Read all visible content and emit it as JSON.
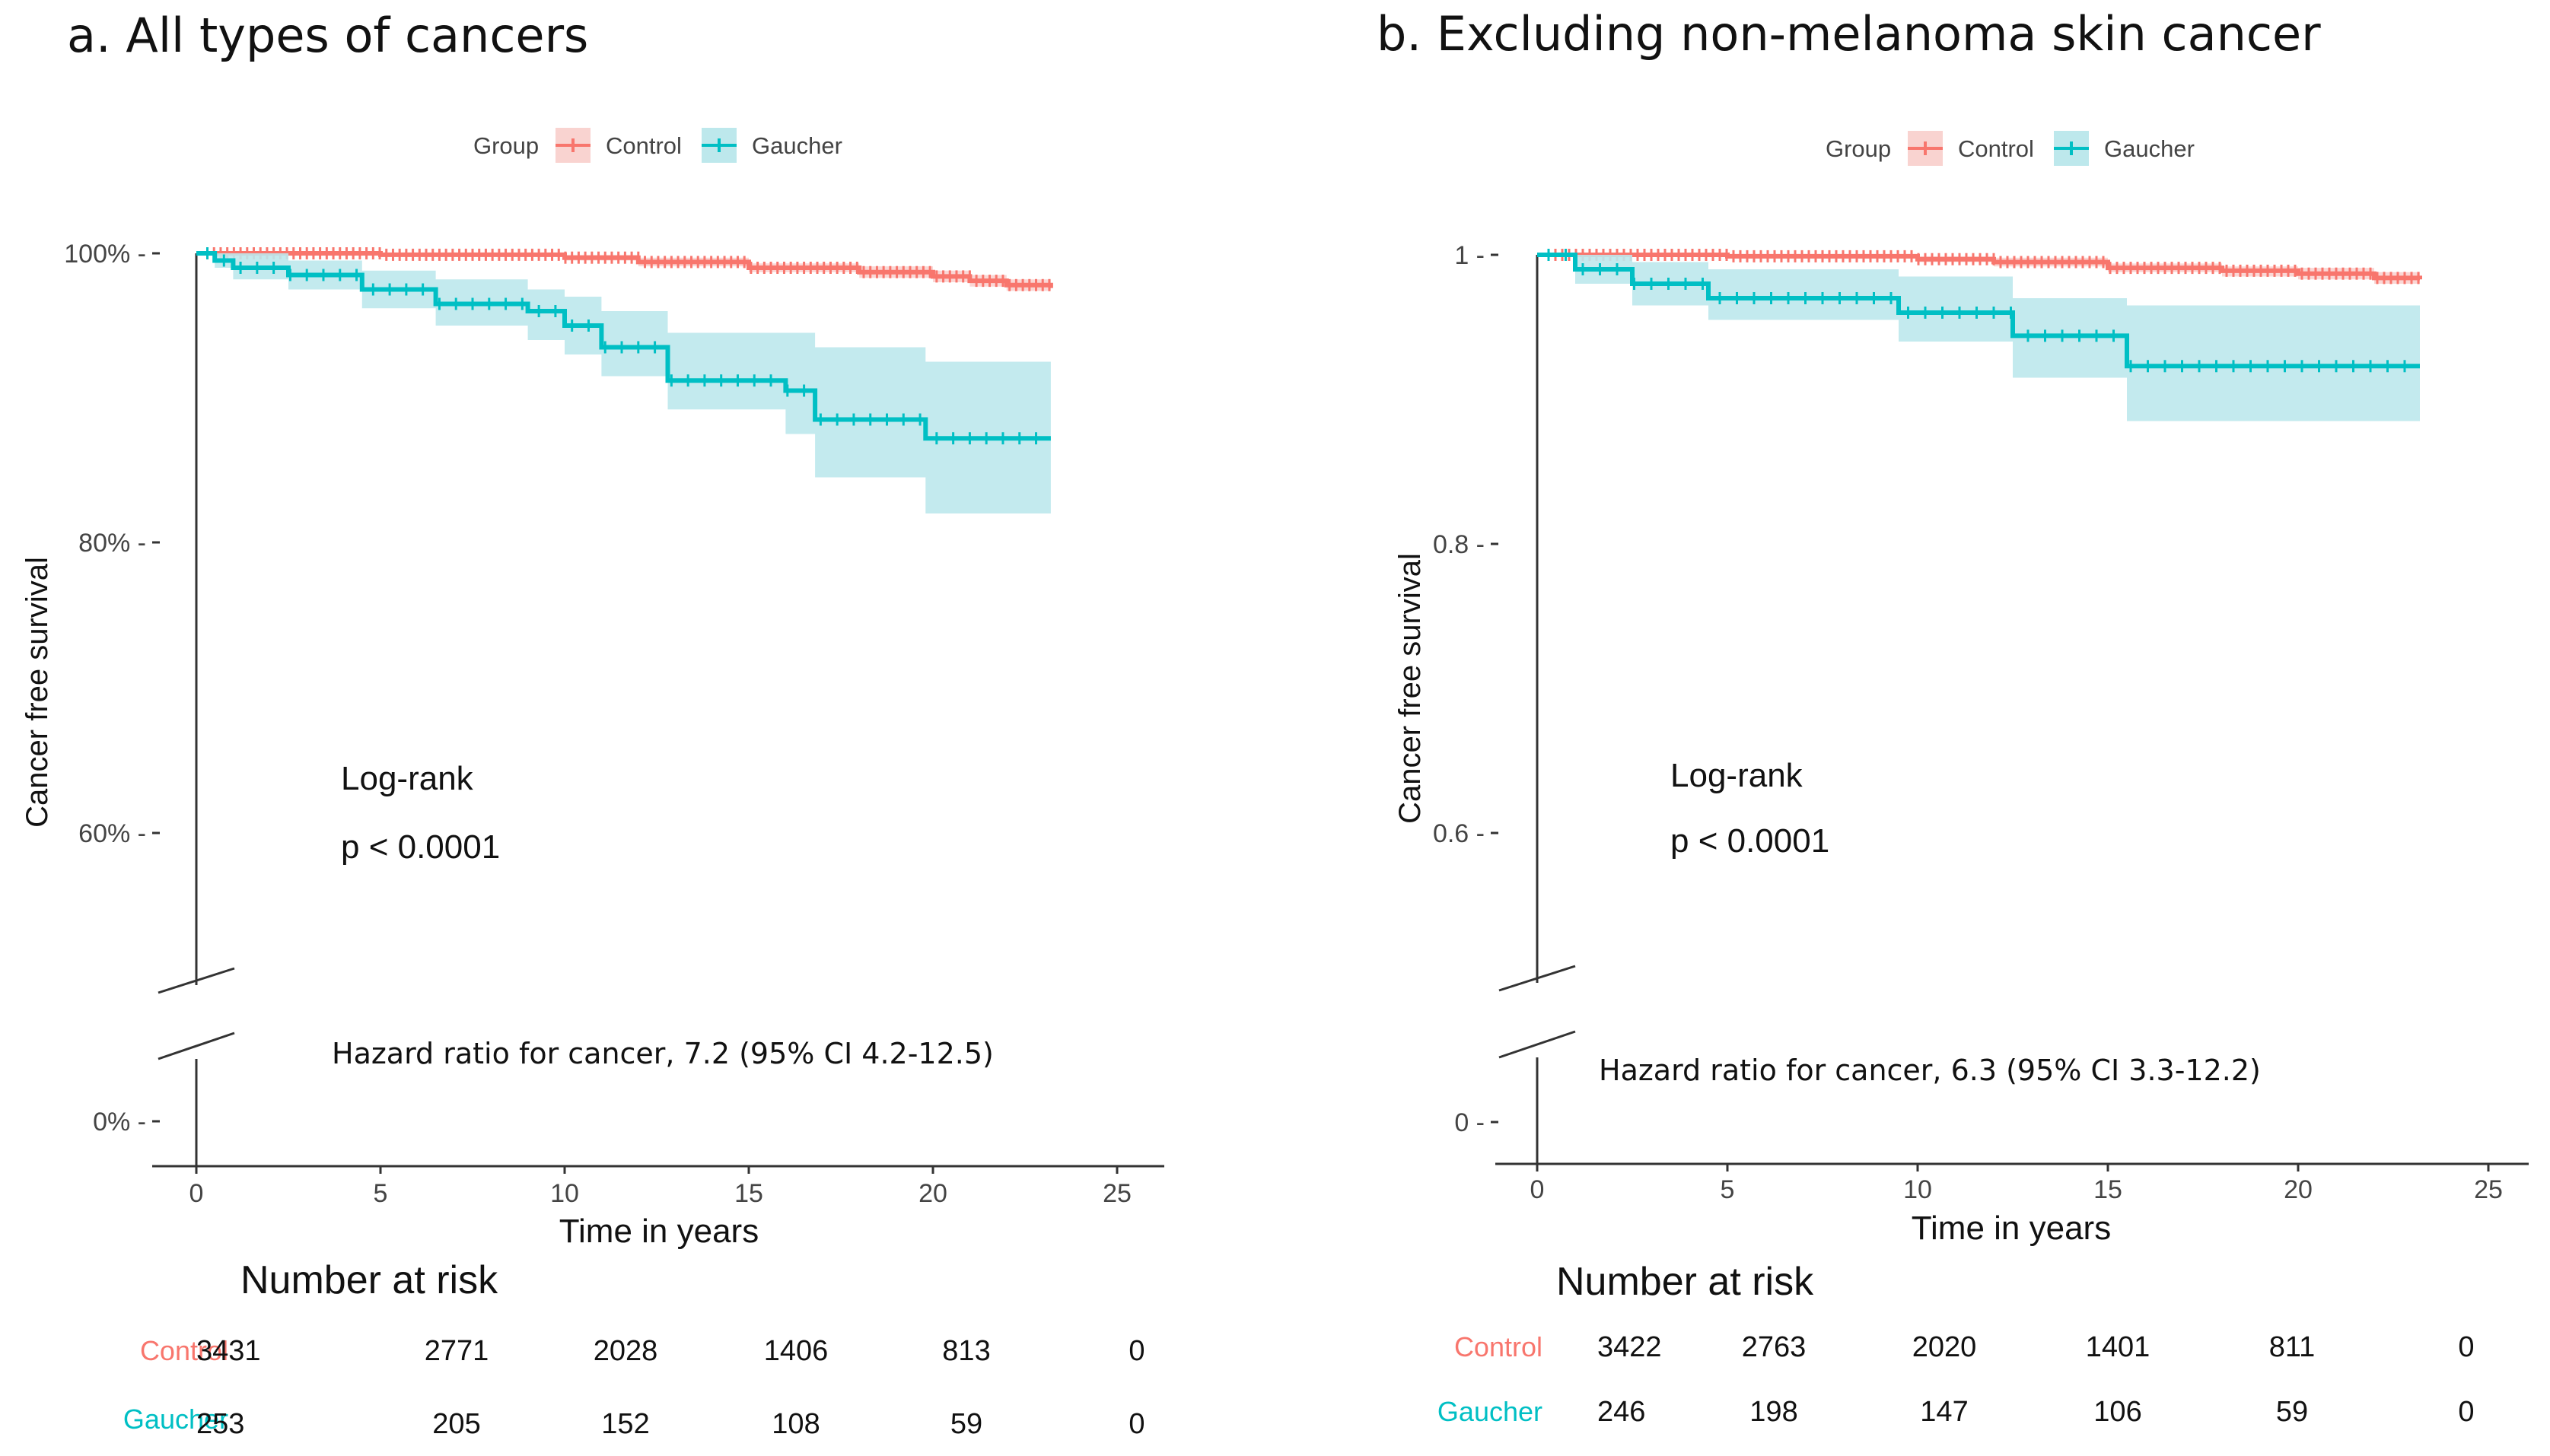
{
  "colors": {
    "control": "#F8766D",
    "gaucher": "#00BFC4",
    "gaucher_ci": "#BDE8EC",
    "axis": "#333333"
  },
  "chart_data": [
    {
      "type": "line",
      "panel": "a",
      "title": "a. All types of cancers",
      "legend": {
        "title": "Group",
        "entries": [
          "Control",
          "Gaucher"
        ],
        "position": "top"
      },
      "xlabel": "Time in years",
      "ylabel": "Cancer free survival",
      "x_ticks": [
        "0",
        "5",
        "10",
        "15",
        "20",
        "25"
      ],
      "xlim": [
        0,
        25
      ],
      "y_ticks": [
        {
          "value": 1.0,
          "label": "100%"
        },
        {
          "value": 0.8,
          "label": "80%"
        },
        {
          "value": 0.6,
          "label": "60%"
        },
        {
          "value": 0.0,
          "label": "0%"
        }
      ],
      "y_axis_break": [
        0.0,
        0.6
      ],
      "annotation_logrank": "Log-rank",
      "annotation_p": "p < 0.0001",
      "hazard_text": "Hazard ratio for cancer, 7.2 (95% CI 4.2-12.5)",
      "series": [
        {
          "name": "Control",
          "x": [
            0,
            5,
            10,
            12,
            15,
            18,
            20,
            21,
            22,
            23.2
          ],
          "y": [
            1.0,
            0.999,
            0.997,
            0.994,
            0.99,
            0.987,
            0.984,
            0.981,
            0.978,
            0.976
          ],
          "ci_lower": [
            1.0,
            0.998,
            0.995,
            0.991,
            0.987,
            0.983,
            0.98,
            0.977,
            0.974,
            0.972
          ],
          "ci_upper": [
            1.0,
            1.0,
            0.999,
            0.997,
            0.993,
            0.991,
            0.988,
            0.985,
            0.982,
            0.98
          ]
        },
        {
          "name": "Gaucher",
          "x": [
            0,
            0.5,
            1,
            2.5,
            4.5,
            6.5,
            9,
            10,
            11,
            12.8,
            16,
            16.8,
            19.8,
            23.2
          ],
          "y": [
            1.0,
            0.995,
            0.99,
            0.985,
            0.975,
            0.965,
            0.96,
            0.95,
            0.935,
            0.912,
            0.905,
            0.885,
            0.872,
            0.872
          ],
          "ci_lower": [
            1.0,
            0.99,
            0.982,
            0.975,
            0.962,
            0.95,
            0.94,
            0.93,
            0.915,
            0.892,
            0.875,
            0.845,
            0.82,
            0.82
          ],
          "ci_upper": [
            1.0,
            1.0,
            1.0,
            0.995,
            0.988,
            0.982,
            0.975,
            0.97,
            0.96,
            0.945,
            0.945,
            0.935,
            0.925,
            0.925
          ]
        }
      ],
      "risk_table": {
        "title": "Number at risk",
        "rows": [
          {
            "group": "Control",
            "values": [
              "3431",
              "2771",
              "2028",
              "1406",
              "813",
              "0"
            ]
          },
          {
            "group": "Gaucher",
            "values": [
              "253",
              "205",
              "152",
              "108",
              "59",
              "0"
            ]
          }
        ]
      }
    },
    {
      "type": "line",
      "panel": "b",
      "title": "b. Excluding non-melanoma skin cancer",
      "legend": {
        "title": "Group",
        "entries": [
          "Control",
          "Gaucher"
        ],
        "position": "top"
      },
      "xlabel": "Time in years",
      "ylabel": "Cancer free survival",
      "x_ticks": [
        "0",
        "5",
        "10",
        "15",
        "20",
        "25"
      ],
      "xlim": [
        0,
        25
      ],
      "y_ticks": [
        {
          "value": 1.0,
          "label": "1"
        },
        {
          "value": 0.8,
          "label": "0.8"
        },
        {
          "value": 0.6,
          "label": "0.6"
        },
        {
          "value": 0.0,
          "label": "0"
        }
      ],
      "y_axis_break": [
        0.0,
        0.6
      ],
      "annotation_logrank": "Log-rank",
      "annotation_p": "p < 0.0001",
      "hazard_text": "Hazard ratio for cancer, 6.3 (95% CI 3.3-12.2)",
      "series": [
        {
          "name": "Control",
          "x": [
            0,
            5,
            10,
            12,
            15,
            18,
            20,
            22,
            23.2
          ],
          "y": [
            1.0,
            0.999,
            0.997,
            0.995,
            0.991,
            0.989,
            0.987,
            0.984,
            0.983
          ],
          "ci_lower": [
            1.0,
            0.998,
            0.995,
            0.992,
            0.988,
            0.985,
            0.983,
            0.98,
            0.979
          ],
          "ci_upper": [
            1.0,
            1.0,
            0.999,
            0.998,
            0.994,
            0.992,
            0.991,
            0.988,
            0.987
          ]
        },
        {
          "name": "Gaucher",
          "x": [
            0,
            1,
            2.5,
            4.5,
            9.5,
            12.5,
            15.5,
            23.2
          ],
          "y": [
            1.0,
            0.99,
            0.98,
            0.97,
            0.96,
            0.944,
            0.923,
            0.923
          ],
          "ci_lower": [
            1.0,
            0.98,
            0.965,
            0.955,
            0.94,
            0.915,
            0.885,
            0.885
          ],
          "ci_upper": [
            1.0,
            1.0,
            0.995,
            0.99,
            0.985,
            0.97,
            0.965,
            0.965
          ]
        }
      ],
      "risk_table": {
        "title": "Number at risk",
        "rows": [
          {
            "group": "Control",
            "values": [
              "3422",
              "2763",
              "2020",
              "1401",
              "811",
              "0"
            ]
          },
          {
            "group": "Gaucher",
            "values": [
              "246",
              "198",
              "147",
              "106",
              "59",
              "0"
            ]
          }
        ]
      }
    }
  ]
}
